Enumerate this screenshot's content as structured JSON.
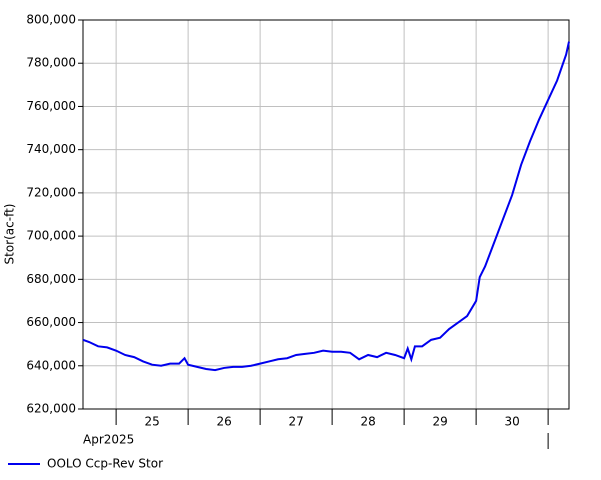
{
  "chart_data": {
    "type": "line",
    "ylabel": "Stor(ac-ft)",
    "month_label": "Apr2025",
    "x": [
      24.54,
      24.625,
      24.75,
      24.875,
      25,
      25.125,
      25.25,
      25.375,
      25.5,
      25.625,
      25.75,
      25.875,
      25.95,
      26,
      26.125,
      26.25,
      26.375,
      26.5,
      26.625,
      26.75,
      26.875,
      27,
      27.125,
      27.25,
      27.375,
      27.5,
      27.625,
      27.75,
      27.875,
      28,
      28.125,
      28.25,
      28.375,
      28.5,
      28.625,
      28.75,
      28.875,
      29,
      29.05,
      29.1,
      29.15,
      29.25,
      29.375,
      29.5,
      29.625,
      29.75,
      29.875,
      30,
      30.05,
      30.125,
      30.25,
      30.375,
      30.5,
      30.625,
      30.75,
      30.875,
      31,
      31.125,
      31.25,
      31.29
    ],
    "series": [
      {
        "name": "OOLO Ccp-Rev Stor",
        "color": "#0000ee",
        "values": [
          652000,
          651000,
          649000,
          648500,
          647000,
          645000,
          644000,
          642000,
          640500,
          640000,
          641000,
          641000,
          643500,
          640500,
          639500,
          638500,
          638000,
          639000,
          639500,
          639500,
          640000,
          641000,
          642000,
          643000,
          643500,
          645000,
          645500,
          646000,
          647000,
          646500,
          646500,
          646000,
          643000,
          645000,
          644000,
          646000,
          645000,
          643500,
          648000,
          643000,
          649000,
          649000,
          652000,
          653000,
          657000,
          660000,
          663000,
          670000,
          681000,
          686000,
          697000,
          708000,
          719000,
          733000,
          744000,
          754000,
          763000,
          772000,
          784000,
          790000
        ]
      }
    ],
    "xlim": [
      24.54,
      31.29
    ],
    "xticks": [
      25,
      26,
      27,
      28,
      29,
      30,
      31
    ],
    "day_labels": [
      25,
      26,
      27,
      28,
      29,
      30
    ],
    "ylim": [
      620000,
      800000
    ],
    "yticks": [
      {
        "value": 620000,
        "label": "620,000"
      },
      {
        "value": 640000,
        "label": "640,000"
      },
      {
        "value": 660000,
        "label": "660,000"
      },
      {
        "value": 680000,
        "label": "680,000"
      },
      {
        "value": 700000,
        "label": "700,000"
      },
      {
        "value": 720000,
        "label": "720,000"
      },
      {
        "value": 740000,
        "label": "740,000"
      },
      {
        "value": 760000,
        "label": "760,000"
      },
      {
        "value": 780000,
        "label": "780,000"
      },
      {
        "value": 800000,
        "label": "800,000"
      }
    ],
    "grid": true
  }
}
